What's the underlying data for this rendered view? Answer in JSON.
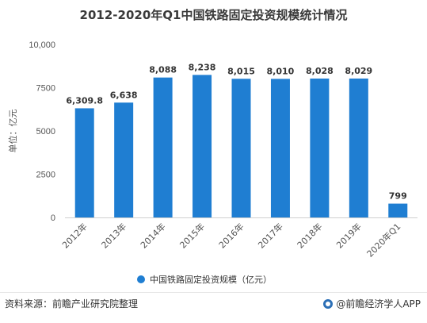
{
  "chart_data": {
    "type": "bar",
    "title": "2012-2020年Q1中国铁路固定投资规模统计情况",
    "ylabel": "单位：亿元",
    "xlabel": "",
    "ylim": [
      0,
      10000
    ],
    "yticks": [
      "0",
      "2500",
      "5000",
      "7500",
      "10,000"
    ],
    "ytick_values": [
      0,
      2500,
      5000,
      7500,
      10000
    ],
    "categories": [
      "2012年",
      "2013年",
      "2014年",
      "2015年",
      "2016年",
      "2017年",
      "2018年",
      "2019年",
      "2020年Q1"
    ],
    "series": [
      {
        "name": "中国铁路固定投资规模（亿元）",
        "values": [
          6309.8,
          6638,
          8088,
          8238,
          8015,
          8010,
          8028,
          8029,
          799
        ],
        "data_labels": [
          "6,309.8",
          "6,638",
          "8,088",
          "8,238",
          "8,015",
          "8,010",
          "8,028",
          "8,029",
          "799"
        ],
        "color": "#1f7ed2"
      }
    ],
    "grid": false,
    "legend": "bottom-center"
  },
  "footer": {
    "source": "资料来源：前瞻产业研究院整理",
    "credit": "@前瞻经济学人APP"
  }
}
